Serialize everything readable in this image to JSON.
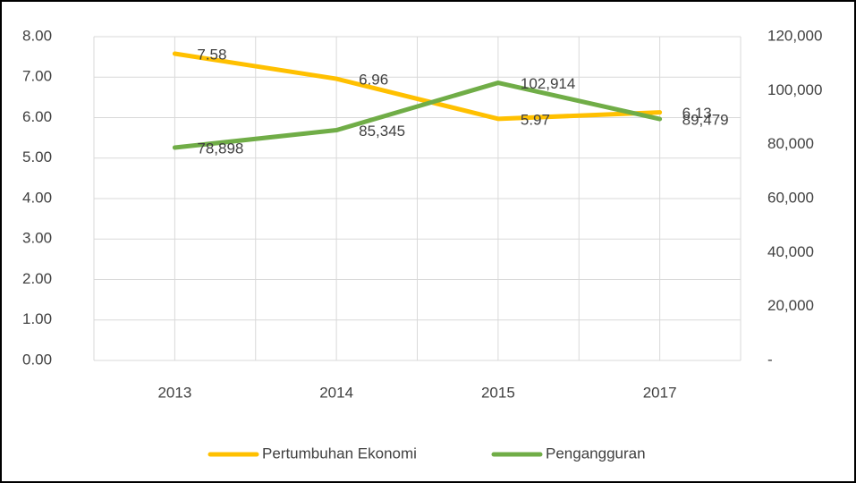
{
  "chart_data": {
    "type": "line",
    "categories": [
      "2013",
      "2014",
      "2015",
      "2017"
    ],
    "series": [
      {
        "name": "Pertumbuhan Ekonomi",
        "color": "#FFC000",
        "values": [
          7.58,
          6.96,
          5.97,
          6.13
        ],
        "value_labels": [
          "7.58",
          "6.96",
          "5.97",
          "6.13"
        ]
      },
      {
        "name": "Pengangguran",
        "color": "#70AD47",
        "axis": "y2",
        "values": [
          78898,
          85345,
          102914,
          89479
        ],
        "value_labels": [
          "78,898",
          "85,345",
          "102,914",
          "89,479"
        ]
      }
    ],
    "ylim": [
      0,
      8
    ],
    "yticks": [
      {
        "value": 0,
        "label": "0.00"
      },
      {
        "value": 1,
        "label": "1.00"
      },
      {
        "value": 2,
        "label": "2.00"
      },
      {
        "value": 3,
        "label": "3.00"
      },
      {
        "value": 4,
        "label": "4.00"
      },
      {
        "value": 5,
        "label": "5.00"
      },
      {
        "value": 6,
        "label": "6.00"
      },
      {
        "value": 7,
        "label": "7.00"
      },
      {
        "value": 8,
        "label": "8.00"
      }
    ],
    "y2lim": [
      0,
      120000
    ],
    "y2ticks": [
      {
        "value": 0,
        "label": "-"
      },
      {
        "value": 20000,
        "label": "20,000"
      },
      {
        "value": 40000,
        "label": "40,000"
      },
      {
        "value": 60000,
        "label": "60,000"
      },
      {
        "value": 80000,
        "label": "80,000"
      },
      {
        "value": 100000,
        "label": "100,000"
      },
      {
        "value": 120000,
        "label": "120,000"
      }
    ],
    "grid": true,
    "legend": "bottom"
  }
}
